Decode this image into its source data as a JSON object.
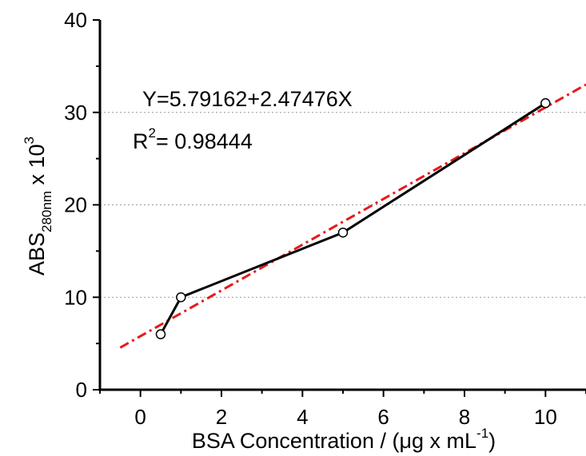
{
  "chart_data": {
    "type": "line",
    "xlabel_main": "BSA Concentration / (",
    "xlabel_mu": "μ",
    "xlabel_mid": "g x mL",
    "xlabel_sup": "-1",
    "xlabel_end": ")",
    "ylabel_main": "ABS",
    "ylabel_sub": "280nm",
    "ylabel_mid": " x 10",
    "ylabel_sup": "3",
    "xlim": [
      -1,
      11
    ],
    "ylim": [
      0,
      40
    ],
    "xticks": [
      0,
      2,
      4,
      6,
      8,
      10
    ],
    "yticks": [
      0,
      10,
      20,
      30,
      40
    ],
    "grid_y": [
      10,
      20,
      30
    ],
    "series": [
      {
        "x": [
          0.5,
          1,
          5,
          10
        ],
        "y": [
          6,
          10,
          17,
          31
        ],
        "color": "#000000",
        "marker": "open-circle"
      }
    ],
    "fit": {
      "intercept": 5.79162,
      "slope": 2.47476,
      "x_range": [
        -0.5,
        11
      ],
      "color": "#e8191a",
      "style": "dash-dot"
    },
    "annotations": {
      "equation": "Y=5.79162+2.47476X",
      "r2_main": "R",
      "r2_sup": "2",
      "r2_value": "= 0.98444"
    }
  }
}
